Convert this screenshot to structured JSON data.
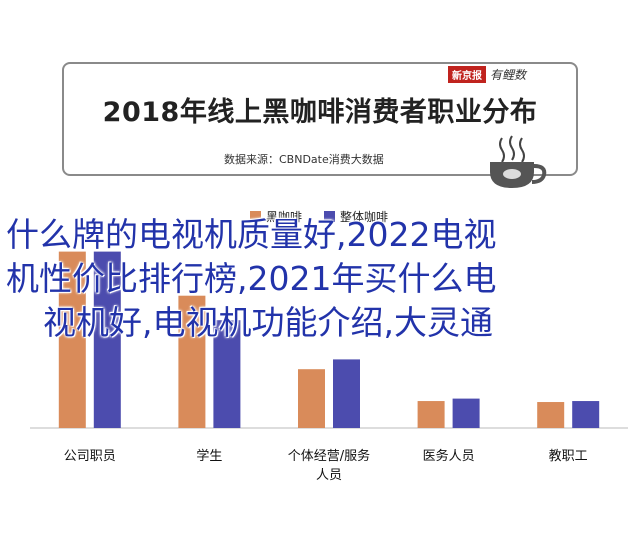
{
  "header": {
    "title": "2018年线上黑咖啡消费者职业分布",
    "data_source": "数据来源：CBNDate消费大数据",
    "brand_name": "新京报",
    "brand_sub": "有鲤数"
  },
  "overlay": {
    "line1": "什么牌的电视机质量好,2022电视",
    "line2": "机性价比排行榜,2021年买什么电",
    "line3": "视机好,电视机功能介绍,大灵通"
  },
  "colors": {
    "series1": "#d98b5a",
    "series2": "#4c4cae",
    "overlay_text": "#2233aa",
    "brand_red": "#c0231e"
  },
  "chart_data": {
    "type": "bar",
    "title": "2018年线上黑咖啡消费者职业分布",
    "categories": [
      "公司职员",
      "学生",
      "个体经营/服务人员",
      "医务人员",
      "教职工"
    ],
    "series": [
      {
        "name": "黑咖啡",
        "values": [
          36.0,
          27.0,
          12.0,
          5.5,
          5.3
        ]
      },
      {
        "name": "整体咖啡",
        "values": [
          36.0,
          22.0,
          14.0,
          6.0,
          5.5
        ]
      }
    ],
    "ylim": [
      0,
      40
    ],
    "grid": false,
    "legend_position": "top-center"
  }
}
